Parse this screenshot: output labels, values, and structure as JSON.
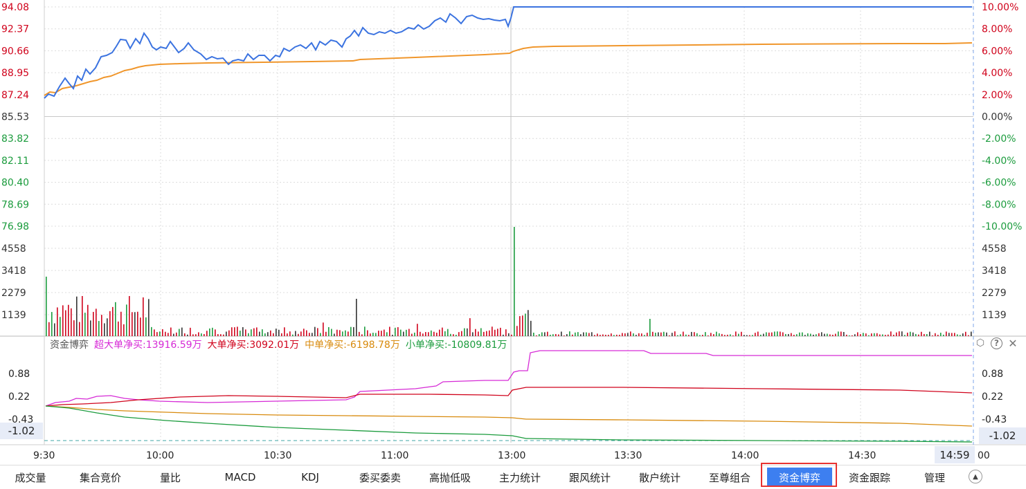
{
  "price_axis": {
    "left_ticks": [
      "94.08",
      "92.37",
      "90.66",
      "88.95",
      "87.24",
      "85.53",
      "83.82",
      "82.11",
      "80.40",
      "78.69",
      "76.98"
    ],
    "right_ticks": [
      "10.00%",
      "8.00%",
      "6.00%",
      "4.00%",
      "2.00%",
      "0.00%",
      "-2.00%",
      "-4.00%",
      "-6.00%",
      "-8.00%",
      "-10.00%"
    ],
    "up_color": "#d0021b",
    "down_color": "#1a9b3c",
    "flat_color": "#333333"
  },
  "volume_axis": {
    "ticks": [
      "4558",
      "3418",
      "2279",
      "1139"
    ]
  },
  "indicator": {
    "name": "资金博弈",
    "items": [
      {
        "label": "超大单净买:13916.59万",
        "color": "#d62ad6"
      },
      {
        "label": "大单净买:3092.01万",
        "color": "#d0021b"
      },
      {
        "label": "中单净买:-6198.78万",
        "color": "#d88a0c"
      },
      {
        "label": "小单净买:-10809.81万",
        "color": "#1a9b3c"
      }
    ],
    "ticks": [
      "0.88",
      "0.22",
      "-0.43"
    ],
    "cursor_value": "-1.02"
  },
  "tools": {
    "settings": "⬡",
    "help": "?",
    "close": "✕"
  },
  "time_axis": {
    "labels": [
      "9:30",
      "10:00",
      "10:30",
      "11:00",
      "13:00",
      "13:30",
      "14:00",
      "14:30"
    ],
    "end_label": "00",
    "cursor_time": "14:59"
  },
  "tabs": [
    {
      "label": "成交量"
    },
    {
      "label": "集合竞价"
    },
    {
      "label": "量比"
    },
    {
      "label": "MACD"
    },
    {
      "label": "KDJ"
    },
    {
      "label": "委买委卖"
    },
    {
      "label": "高抛低吸"
    },
    {
      "label": "主力统计"
    },
    {
      "label": "跟风统计"
    },
    {
      "label": "散户统计"
    },
    {
      "label": "至尊组合"
    },
    {
      "label": "资金博弈",
      "active": true
    },
    {
      "label": "资金跟踪"
    },
    {
      "label": "管理"
    }
  ],
  "collapse_icon": "▲",
  "colors": {
    "price_line": "#3b73e0",
    "avg_line": "#f0962b",
    "grid": "#dcdcdc",
    "active_tab": "#3d7ff0",
    "highlight": "#e8312f"
  }
}
